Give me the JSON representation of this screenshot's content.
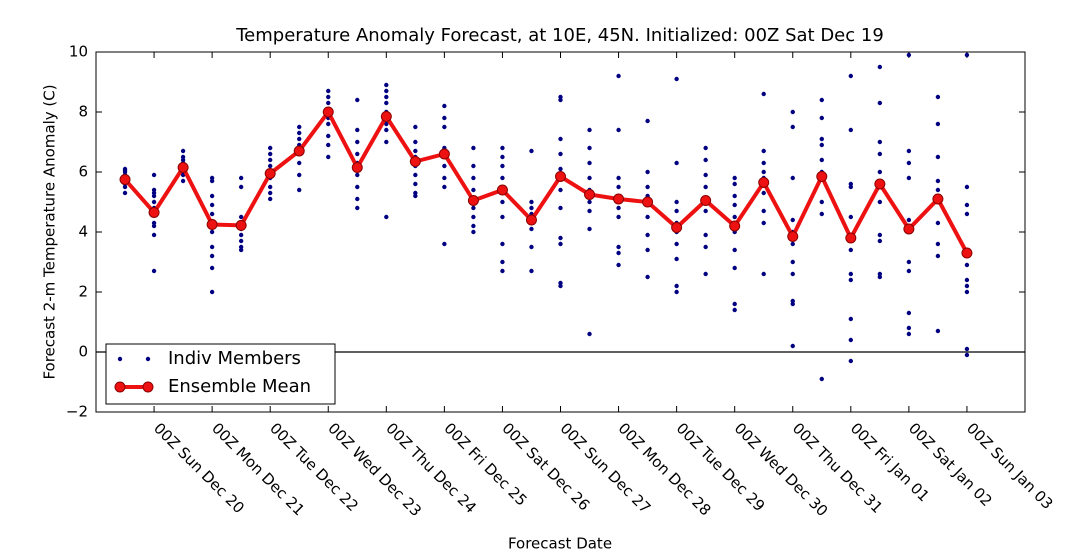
{
  "chart_data": {
    "type": "scatter_line",
    "title": "Temperature Anomaly Forecast, at 10E, 45N.  Initialized: 00Z Sat Dec 19",
    "x_label": "Forecast Date",
    "y_label": "Forecast 2-m Temperature Anomaly (C)",
    "x": [
      "Dec 19 12Z",
      "Dec 20 00Z",
      "Dec 20 12Z",
      "Dec 21 00Z",
      "Dec 21 12Z",
      "Dec 22 00Z",
      "Dec 22 12Z",
      "Dec 23 00Z",
      "Dec 23 12Z",
      "Dec 24 00Z",
      "Dec 24 12Z",
      "Dec 25 00Z",
      "Dec 25 12Z",
      "Dec 26 00Z",
      "Dec 26 12Z",
      "Dec 27 00Z",
      "Dec 27 12Z",
      "Dec 28 00Z",
      "Dec 28 12Z",
      "Dec 29 00Z",
      "Dec 29 12Z",
      "Dec 30 00Z",
      "Dec 30 12Z",
      "Dec 31 00Z",
      "Dec 31 12Z",
      "Jan 01 00Z",
      "Jan 01 12Z",
      "Jan 02 00Z",
      "Jan 02 12Z",
      "Jan 03 00Z"
    ],
    "xlim": [
      "Dec 19 00Z",
      "Jan 04 00Z"
    ],
    "xticks": [
      {
        "value": "Dec 20 00Z",
        "label": "00Z Sun Dec 20"
      },
      {
        "value": "Dec 21 00Z",
        "label": "00Z Mon Dec 21"
      },
      {
        "value": "Dec 22 00Z",
        "label": "00Z Tue Dec 22"
      },
      {
        "value": "Dec 23 00Z",
        "label": "00Z Wed Dec 23"
      },
      {
        "value": "Dec 24 00Z",
        "label": "00Z Thu Dec 24"
      },
      {
        "value": "Dec 25 00Z",
        "label": "00Z Fri Dec 25"
      },
      {
        "value": "Dec 26 00Z",
        "label": "00Z Sat Dec 26"
      },
      {
        "value": "Dec 27 00Z",
        "label": "00Z Sun Dec 27"
      },
      {
        "value": "Dec 28 00Z",
        "label": "00Z Mon Dec 28"
      },
      {
        "value": "Dec 29 00Z",
        "label": "00Z Tue Dec 29"
      },
      {
        "value": "Dec 30 00Z",
        "label": "00Z Wed Dec 30"
      },
      {
        "value": "Dec 31 00Z",
        "label": "00Z Thu Dec 31"
      },
      {
        "value": "Jan 01 00Z",
        "label": "00Z Fri Jan 01"
      },
      {
        "value": "Jan 02 00Z",
        "label": "00Z Sat Jan 02"
      },
      {
        "value": "Jan 03 00Z",
        "label": "00Z Sun Jan 03"
      }
    ],
    "ylim": [
      -2,
      10
    ],
    "yticks": [
      {
        "value": -2,
        "label": "−2"
      },
      0,
      2,
      4,
      6,
      8,
      10
    ],
    "hline": 0,
    "legend": "lower left",
    "series": [
      {
        "name": "Indiv Members",
        "color": "#000080",
        "values": [
          [
            6.1,
            6.0,
            5.9,
            5.8,
            5.7,
            5.6,
            5.5,
            5.3,
            5.9,
            6.05
          ],
          [
            5.9,
            5.4,
            5.2,
            5.0,
            4.8,
            4.6,
            4.3,
            4.2,
            3.9,
            2.7,
            5.3
          ],
          [
            6.7,
            6.5,
            6.4,
            6.2,
            6.0,
            5.9,
            5.7,
            6.3
          ],
          [
            5.8,
            5.7,
            5.2,
            4.9,
            4.6,
            4.3,
            4.0,
            3.5,
            3.2,
            2.8,
            2.0
          ],
          [
            5.8,
            5.5,
            4.5,
            4.3,
            4.1,
            3.9,
            3.7,
            3.5,
            3.4
          ],
          [
            6.8,
            6.6,
            6.4,
            6.2,
            6.0,
            5.8,
            5.5,
            5.3,
            5.1
          ],
          [
            7.5,
            7.3,
            7.1,
            6.9,
            6.6,
            6.3,
            5.9,
            5.4
          ],
          [
            8.7,
            8.5,
            8.3,
            8.0,
            7.8,
            7.6,
            7.2,
            6.9,
            6.5
          ],
          [
            8.4,
            7.4,
            7.0,
            6.6,
            6.3,
            5.9,
            5.5,
            5.1,
            4.8
          ],
          [
            8.9,
            8.7,
            8.5,
            8.3,
            8.0,
            7.6,
            7.4,
            7.0,
            4.5
          ],
          [
            7.5,
            7.0,
            6.7,
            6.5,
            6.2,
            5.9,
            5.6,
            5.3,
            5.2
          ],
          [
            8.2,
            7.8,
            7.5,
            6.8,
            6.5,
            6.2,
            5.8,
            5.5,
            3.6
          ],
          [
            6.8,
            6.2,
            5.8,
            5.4,
            5.0,
            4.8,
            4.5,
            4.2,
            4.0
          ],
          [
            6.8,
            6.5,
            6.2,
            5.8,
            5.4,
            5.0,
            4.5,
            3.6,
            3.0,
            2.7
          ],
          [
            6.7,
            5.0,
            4.8,
            4.6,
            4.3,
            4.1,
            3.5,
            2.7
          ],
          [
            8.5,
            8.4,
            7.1,
            6.6,
            6.1,
            5.8,
            5.4,
            4.8,
            3.8,
            3.6,
            2.3,
            2.2
          ],
          [
            7.4,
            6.8,
            6.3,
            5.8,
            5.4,
            5.0,
            4.7,
            4.1,
            0.6
          ],
          [
            9.2,
            7.4,
            5.8,
            5.5,
            5.2,
            4.8,
            4.5,
            3.5,
            3.3,
            2.9
          ],
          [
            7.7,
            6.0,
            5.5,
            5.2,
            5.0,
            4.5,
            3.9,
            3.4,
            2.5
          ],
          [
            9.1,
            6.3,
            5.0,
            4.7,
            4.3,
            4.0,
            3.6,
            3.1,
            2.2,
            2.0
          ],
          [
            6.8,
            6.4,
            5.9,
            5.5,
            5.1,
            4.7,
            3.9,
            3.5,
            2.6
          ],
          [
            5.8,
            5.6,
            5.2,
            4.9,
            4.5,
            4.0,
            3.4,
            2.8,
            1.6,
            1.4
          ],
          [
            8.6,
            6.7,
            6.3,
            6.0,
            5.8,
            5.3,
            4.7,
            4.3,
            2.6
          ],
          [
            8.0,
            7.5,
            5.8,
            4.4,
            4.0,
            3.6,
            3.0,
            2.6,
            1.7,
            1.6,
            0.2
          ],
          [
            8.4,
            7.8,
            7.1,
            6.9,
            6.4,
            6.0,
            5.0,
            4.6,
            -0.9
          ],
          [
            9.2,
            7.4,
            5.6,
            5.5,
            4.5,
            3.4,
            2.6,
            2.4,
            1.1,
            0.4,
            -0.3
          ],
          [
            9.5,
            8.3,
            7.0,
            6.6,
            6.0,
            5.6,
            5.0,
            3.9,
            3.7,
            2.6,
            2.5
          ],
          [
            9.9,
            6.7,
            6.3,
            5.8,
            4.4,
            4.2,
            3.0,
            2.7,
            1.3,
            0.8,
            0.6
          ],
          [
            8.5,
            7.6,
            6.5,
            5.7,
            5.4,
            5.0,
            4.3,
            3.6,
            3.2,
            0.7
          ],
          [
            9.9,
            5.5,
            4.9,
            4.6,
            3.3,
            2.9,
            2.4,
            2.2,
            2.0,
            0.1,
            -0.1
          ]
        ]
      },
      {
        "name": "Ensemble Mean",
        "color": "#ee1111",
        "values": [
          5.75,
          4.65,
          6.15,
          4.25,
          4.22,
          5.95,
          6.7,
          8.0,
          6.15,
          7.85,
          6.35,
          6.6,
          5.05,
          5.4,
          4.4,
          5.85,
          5.25,
          5.1,
          5.0,
          4.15,
          5.05,
          4.2,
          5.65,
          3.85,
          5.85,
          3.8,
          5.6,
          4.1,
          5.1,
          3.3
        ]
      }
    ]
  }
}
